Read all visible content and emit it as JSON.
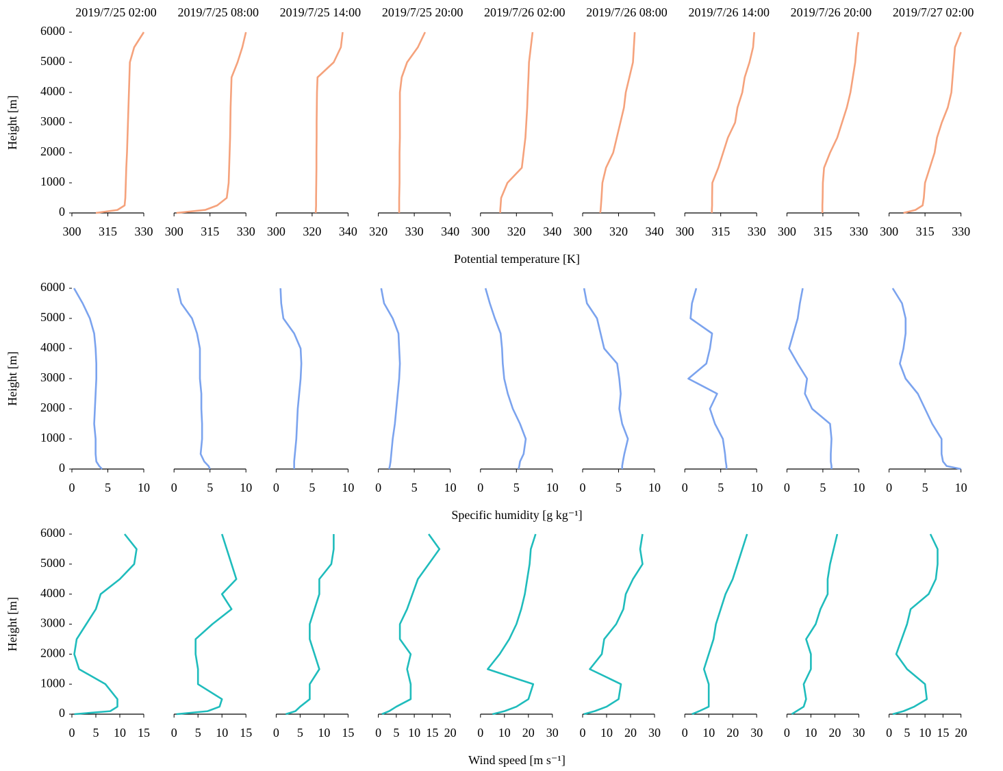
{
  "chart_data": [
    {
      "type": "line",
      "xlabel": "Potential temperature [K]",
      "ylabel": "Height [m]",
      "color": "#f5a27c",
      "ylim": [
        0,
        6000
      ],
      "yticks": [
        0,
        1000,
        2000,
        3000,
        4000,
        5000,
        6000
      ],
      "heights": [
        0,
        100,
        250,
        500,
        1000,
        1500,
        2000,
        2500,
        3000,
        3500,
        4000,
        4500,
        5000,
        5500,
        6000
      ],
      "panels": [
        {
          "title": "2019/7/25 02:00",
          "xlim": [
            300,
            330
          ],
          "xticks": [
            300,
            315,
            330
          ],
          "values": [
            310,
            319,
            322,
            322.3,
            322.5,
            322.7,
            323,
            323.2,
            323.4,
            323.6,
            323.8,
            324,
            324.2,
            326,
            330
          ]
        },
        {
          "title": "2019/7/25 08:00",
          "xlim": [
            300,
            330
          ],
          "xticks": [
            300,
            315,
            330
          ],
          "values": [
            301,
            313,
            318,
            322,
            322.8,
            323,
            323.2,
            323.4,
            323.5,
            323.6,
            323.8,
            324,
            326.5,
            328.5,
            330
          ]
        },
        {
          "title": "2019/7/25 14:00",
          "xlim": [
            300,
            340
          ],
          "xticks": [
            300,
            320,
            340
          ],
          "values": [
            322,
            322.1,
            322.2,
            322.2,
            322.3,
            322.4,
            322.4,
            322.5,
            322.5,
            322.6,
            322.7,
            323,
            332,
            336,
            337
          ]
        },
        {
          "title": "2019/7/25 20:00",
          "xlim": [
            320,
            340
          ],
          "xticks": [
            320,
            330,
            340
          ],
          "values": [
            325.8,
            325.8,
            325.8,
            325.8,
            325.9,
            325.9,
            325.9,
            326,
            326,
            326,
            326,
            326.5,
            328,
            331,
            333
          ]
        },
        {
          "title": "2019/7/26 02:00",
          "xlim": [
            300,
            340
          ],
          "xticks": [
            300,
            320,
            340
          ],
          "values": [
            311,
            311,
            311.2,
            311.5,
            315,
            323,
            324,
            325,
            325.5,
            326,
            326.3,
            326.7,
            327,
            328,
            329
          ]
        },
        {
          "title": "2019/7/26 08:00",
          "xlim": [
            300,
            340
          ],
          "xticks": [
            300,
            320,
            340
          ],
          "values": [
            309.8,
            310,
            310.2,
            310.5,
            311,
            313,
            317,
            319,
            321,
            323,
            324,
            326,
            328,
            328.5,
            329
          ]
        },
        {
          "title": "2019/7/26 14:00",
          "xlim": [
            300,
            330
          ],
          "xticks": [
            300,
            315,
            330
          ],
          "values": [
            311.3,
            311.3,
            311.4,
            311.4,
            311.5,
            314,
            316,
            318,
            321,
            322,
            324,
            325,
            327,
            328.5,
            329
          ]
        },
        {
          "title": "2019/7/26 20:00",
          "xlim": [
            300,
            330
          ],
          "xticks": [
            300,
            315,
            330
          ],
          "values": [
            314.8,
            314.8,
            314.8,
            314.9,
            315,
            315.5,
            318,
            321,
            323,
            325,
            326.5,
            327.5,
            328.5,
            329,
            329.8
          ]
        },
        {
          "title": "2019/7/27 02:00",
          "xlim": [
            300,
            330
          ],
          "xticks": [
            300,
            315,
            330
          ],
          "values": [
            306,
            311,
            314,
            314.5,
            315,
            317,
            319,
            320,
            322,
            324.5,
            326,
            326.5,
            327,
            327.5,
            330
          ]
        }
      ]
    },
    {
      "type": "line",
      "xlabel": "Specific humidity [g kg⁻¹]",
      "ylabel": "Height [m]",
      "color": "#7ba3ee",
      "ylim": [
        0,
        6000
      ],
      "yticks": [
        0,
        1000,
        2000,
        3000,
        4000,
        5000,
        6000
      ],
      "heights": [
        0,
        100,
        250,
        500,
        1000,
        1500,
        2000,
        2500,
        3000,
        3500,
        4000,
        4500,
        5000,
        5500,
        6000
      ],
      "panels": [
        {
          "xlim": [
            0,
            10
          ],
          "xticks": [
            0,
            5,
            10
          ],
          "values": [
            4.2,
            3.8,
            3.4,
            3.3,
            3.3,
            3.1,
            3.2,
            3.3,
            3.4,
            3.4,
            3.3,
            3.1,
            2.5,
            1.5,
            0.3
          ]
        },
        {
          "xlim": [
            0,
            10
          ],
          "xticks": [
            0,
            5,
            10
          ],
          "values": [
            5,
            4.8,
            4.2,
            3.7,
            3.9,
            3.9,
            3.8,
            3.8,
            3.6,
            3.6,
            3.6,
            3.2,
            2.5,
            1,
            0.5
          ]
        },
        {
          "xlim": [
            0,
            10
          ],
          "xticks": [
            0,
            5,
            10
          ],
          "values": [
            2.5,
            2.5,
            2.5,
            2.6,
            2.8,
            2.9,
            3,
            3.2,
            3.4,
            3.5,
            3.4,
            2.5,
            1,
            0.7,
            0.6
          ]
        },
        {
          "xlim": [
            0,
            10
          ],
          "xticks": [
            0,
            5,
            10
          ],
          "values": [
            1.5,
            1.6,
            1.7,
            1.8,
            2,
            2.3,
            2.5,
            2.7,
            2.9,
            3,
            2.9,
            2.8,
            2,
            0.8,
            0.4
          ]
        },
        {
          "xlim": [
            0,
            10
          ],
          "xticks": [
            0,
            5,
            10
          ],
          "values": [
            5.3,
            5.4,
            5.5,
            6,
            6.3,
            5.5,
            4.5,
            3.8,
            3.3,
            3.1,
            3,
            2.8,
            2,
            1.3,
            0.7
          ]
        },
        {
          "xlim": [
            0,
            10
          ],
          "xticks": [
            0,
            5,
            10
          ],
          "values": [
            5.5,
            5.5,
            5.6,
            5.8,
            6.3,
            5.5,
            5.1,
            5.3,
            5.1,
            4.8,
            3,
            2.5,
            2,
            0.6,
            0.2
          ]
        },
        {
          "xlim": [
            0,
            10
          ],
          "xticks": [
            0,
            5,
            10
          ],
          "values": [
            5.8,
            5.8,
            5.7,
            5.6,
            5.3,
            4.2,
            3.5,
            4.5,
            0.5,
            3,
            3.5,
            3.8,
            0.8,
            1,
            1.6
          ]
        },
        {
          "xlim": [
            0,
            10
          ],
          "xticks": [
            0,
            5,
            10
          ],
          "values": [
            6.2,
            6.2,
            6.1,
            6.1,
            6.2,
            6,
            3.5,
            2.5,
            2.8,
            1.5,
            0.3,
            0.9,
            1.5,
            1.8,
            2.2
          ]
        },
        {
          "xlim": [
            0,
            10
          ],
          "xticks": [
            0,
            5,
            10
          ],
          "values": [
            10,
            8,
            7.5,
            7.3,
            7.3,
            6,
            5,
            4,
            2.3,
            1.5,
            2,
            2.3,
            2.3,
            1.8,
            0.5
          ]
        }
      ]
    },
    {
      "type": "line",
      "xlabel": "Wind speed [m s⁻¹]",
      "ylabel": "Height [m]",
      "color": "#1fbcbc",
      "ylim": [
        0,
        6000
      ],
      "yticks": [
        0,
        1000,
        2000,
        3000,
        4000,
        5000,
        6000
      ],
      "heights": [
        0,
        100,
        250,
        500,
        1000,
        1500,
        2000,
        2500,
        3000,
        3500,
        4000,
        4500,
        5000,
        5500,
        6000
      ],
      "panels": [
        {
          "xlim": [
            0,
            15
          ],
          "xticks": [
            0,
            5,
            10,
            15
          ],
          "values": [
            0.5,
            8,
            9.5,
            9.5,
            7,
            1.5,
            0.5,
            1,
            3,
            5,
            6,
            10,
            13,
            13.5,
            11
          ]
        },
        {
          "xlim": [
            0,
            15
          ],
          "xticks": [
            0,
            5,
            10,
            15
          ],
          "values": [
            0.5,
            7,
            9.5,
            10,
            5,
            5,
            4.5,
            4.5,
            8,
            12,
            10,
            13,
            12,
            11,
            10
          ]
        },
        {
          "xlim": [
            0,
            15
          ],
          "xticks": [
            0,
            5,
            10,
            15
          ],
          "values": [
            2,
            4,
            5,
            7,
            7,
            9,
            8,
            7,
            7,
            8,
            9,
            9,
            11.5,
            12,
            12
          ]
        },
        {
          "xlim": [
            0,
            20
          ],
          "xticks": [
            0,
            5,
            10,
            15,
            20
          ],
          "values": [
            1,
            3,
            5,
            9,
            9,
            8,
            9,
            6,
            6,
            8,
            9.5,
            11,
            14,
            17,
            14
          ]
        },
        {
          "xlim": [
            0,
            30
          ],
          "xticks": [
            0,
            10,
            20,
            30
          ],
          "values": [
            5,
            10,
            15,
            20,
            22,
            3,
            8,
            12,
            15,
            17,
            18.5,
            19.5,
            20.5,
            21,
            23
          ]
        },
        {
          "xlim": [
            0,
            30
          ],
          "xticks": [
            0,
            10,
            20,
            30
          ],
          "values": [
            0.5,
            5,
            10,
            15,
            16,
            3,
            8,
            9,
            14,
            17,
            18,
            21,
            25,
            24,
            25
          ]
        },
        {
          "xlim": [
            0,
            30
          ],
          "xticks": [
            0,
            10,
            20,
            30
          ],
          "values": [
            3,
            6,
            10,
            10,
            10,
            8,
            10,
            12,
            13,
            15,
            17,
            20,
            22,
            24,
            26
          ]
        },
        {
          "xlim": [
            0,
            30
          ],
          "xticks": [
            0,
            10,
            20,
            30
          ],
          "values": [
            2,
            4,
            7,
            8,
            7,
            10,
            10,
            8,
            12,
            14,
            17,
            17,
            18,
            19.5,
            21
          ]
        },
        {
          "xlim": [
            0,
            20
          ],
          "xticks": [
            0,
            5,
            10,
            15,
            20
          ],
          "values": [
            1,
            4,
            7,
            10.5,
            10,
            5,
            2,
            3.5,
            5,
            6,
            11,
            13,
            13.5,
            13.5,
            11.5
          ]
        }
      ]
    }
  ]
}
